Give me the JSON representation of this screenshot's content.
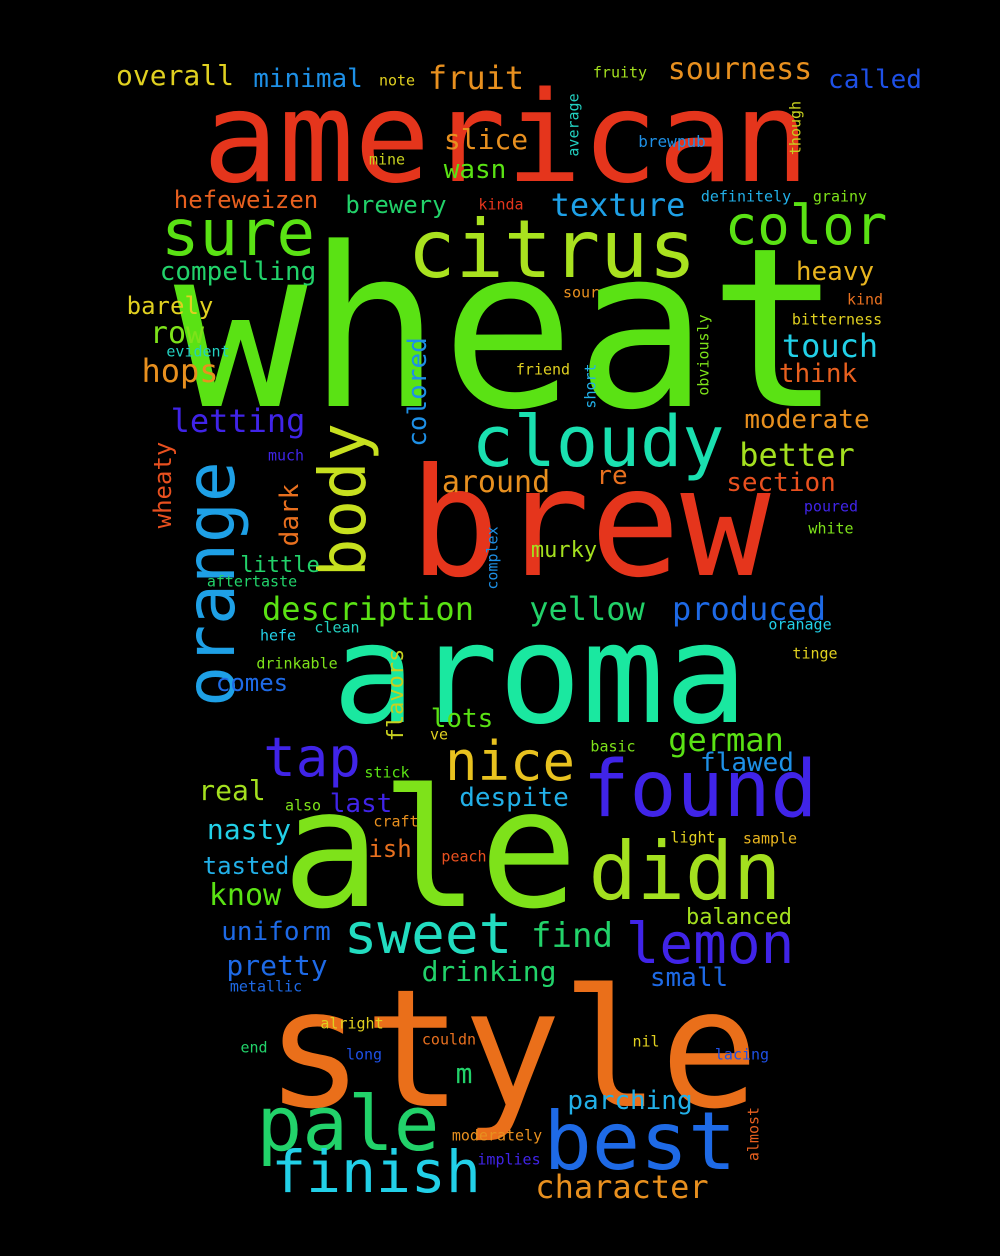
{
  "words": [
    {
      "text": "american",
      "color": "#e5351c"
    },
    {
      "text": "wheat",
      "color": "#5ae214"
    },
    {
      "text": "brew",
      "color": "#e5351c"
    },
    {
      "text": "aroma",
      "color": "#1ae8a0"
    },
    {
      "text": "ale",
      "color": "#7ee21a"
    },
    {
      "text": "style",
      "color": "#ea6f1a"
    },
    {
      "text": "citrus",
      "color": "#a9e21f"
    },
    {
      "text": "orange",
      "color": "#1ea0e6"
    },
    {
      "text": "cloudy",
      "color": "#1ae0b0"
    },
    {
      "text": "sure",
      "color": "#5ae214"
    },
    {
      "text": "body",
      "color": "#c7e01f"
    },
    {
      "text": "found",
      "color": "#4024e8"
    },
    {
      "text": "didn",
      "color": "#a4e01f"
    },
    {
      "text": "best",
      "color": "#1e6ae6"
    },
    {
      "text": "pale",
      "color": "#22d26a"
    },
    {
      "text": "sweet",
      "color": "#22dcc0"
    },
    {
      "text": "lemon",
      "color": "#4024e8"
    },
    {
      "text": "finish",
      "color": "#22d0e8"
    },
    {
      "text": "nice",
      "color": "#e8c21f"
    },
    {
      "text": "tap",
      "color": "#4024e8"
    },
    {
      "text": "color",
      "color": "#5ae214"
    },
    {
      "text": "fruit",
      "color": "#e8901f"
    },
    {
      "text": "sourness",
      "color": "#e8901f"
    },
    {
      "text": "overall",
      "color": "#e0d020"
    },
    {
      "text": "minimal",
      "color": "#1e90e6"
    },
    {
      "text": "called",
      "color": "#1e50e6"
    },
    {
      "text": "note",
      "color": "#e0d020"
    },
    {
      "text": "fruity",
      "color": "#a4e01f"
    },
    {
      "text": "average",
      "color": "#22d0c0"
    },
    {
      "text": "though",
      "color": "#c7d01f"
    },
    {
      "text": "slice",
      "color": "#e8901f"
    },
    {
      "text": "brewpub",
      "color": "#1e90e6"
    },
    {
      "text": "mine",
      "color": "#c7d01f"
    },
    {
      "text": "wasn",
      "color": "#5ae214"
    },
    {
      "text": "hefeweizen",
      "color": "#e8601f"
    },
    {
      "text": "brewery",
      "color": "#22d26a"
    },
    {
      "text": "texture",
      "color": "#1ea0e6"
    },
    {
      "text": "kinda",
      "color": "#e5351c"
    },
    {
      "text": "definitely",
      "color": "#22b0e8"
    },
    {
      "text": "grainy",
      "color": "#7ee21a"
    },
    {
      "text": "compelling",
      "color": "#22d26a"
    },
    {
      "text": "heavy",
      "color": "#e8b41f"
    },
    {
      "text": "barely",
      "color": "#e0d020"
    },
    {
      "text": "sour",
      "color": "#e8901f"
    },
    {
      "text": "kind",
      "color": "#e8701f"
    },
    {
      "text": "bitterness",
      "color": "#e0d020"
    },
    {
      "text": "row",
      "color": "#7ee21a"
    },
    {
      "text": "touch",
      "color": "#22d0e8"
    },
    {
      "text": "evident",
      "color": "#22d0c0"
    },
    {
      "text": "hops",
      "color": "#e8901f"
    },
    {
      "text": "colored",
      "color": "#1e90e6"
    },
    {
      "text": "obviously",
      "color": "#7ee21a"
    },
    {
      "text": "friend",
      "color": "#e0d020"
    },
    {
      "text": "short",
      "color": "#22b0e8"
    },
    {
      "text": "think",
      "color": "#e8601f"
    },
    {
      "text": "letting",
      "color": "#4024e8"
    },
    {
      "text": "moderate",
      "color": "#e8901f"
    },
    {
      "text": "better",
      "color": "#a4e01f"
    },
    {
      "text": "wheaty",
      "color": "#e8501f"
    },
    {
      "text": "much",
      "color": "#4024e8"
    },
    {
      "text": "re",
      "color": "#e8701f"
    },
    {
      "text": "around",
      "color": "#e8901f"
    },
    {
      "text": "section",
      "color": "#e8501f"
    },
    {
      "text": "dark",
      "color": "#e8701f"
    },
    {
      "text": "poured",
      "color": "#4024e8"
    },
    {
      "text": "white",
      "color": "#7ee21a"
    },
    {
      "text": "complex",
      "color": "#1e90e6"
    },
    {
      "text": "murky",
      "color": "#a4e01f"
    },
    {
      "text": "little",
      "color": "#22d26a"
    },
    {
      "text": "aftertaste",
      "color": "#22d26a"
    },
    {
      "text": "description",
      "color": "#5ae214"
    },
    {
      "text": "yellow",
      "color": "#22d26a"
    },
    {
      "text": "produced",
      "color": "#1e6ae6"
    },
    {
      "text": "hefe",
      "color": "#22d0e8"
    },
    {
      "text": "clean",
      "color": "#22d0c0"
    },
    {
      "text": "oranage",
      "color": "#22d0e8"
    },
    {
      "text": "drinkable",
      "color": "#7ee21a"
    },
    {
      "text": "tinge",
      "color": "#e0d020"
    },
    {
      "text": "comes",
      "color": "#1e6ae6"
    },
    {
      "text": "flavors",
      "color": "#c7d01f"
    },
    {
      "text": "lots",
      "color": "#5ae214"
    },
    {
      "text": "ve",
      "color": "#e0d020"
    },
    {
      "text": "german",
      "color": "#5ae214"
    },
    {
      "text": "basic",
      "color": "#7ee21a"
    },
    {
      "text": "flawed",
      "color": "#1e90e6"
    },
    {
      "text": "real",
      "color": "#a4e01f"
    },
    {
      "text": "stick",
      "color": "#5ae214"
    },
    {
      "text": "last",
      "color": "#4024e8"
    },
    {
      "text": "also",
      "color": "#7ee21a"
    },
    {
      "text": "despite",
      "color": "#22b0e8"
    },
    {
      "text": "nasty",
      "color": "#22d0e8"
    },
    {
      "text": "craft",
      "color": "#e8901f"
    },
    {
      "text": "light",
      "color": "#e0d020"
    },
    {
      "text": "sample",
      "color": "#e8b41f"
    },
    {
      "text": "ish",
      "color": "#e8701f"
    },
    {
      "text": "peach",
      "color": "#e8501f"
    },
    {
      "text": "tasted",
      "color": "#22b0e8"
    },
    {
      "text": "know",
      "color": "#5ae214"
    },
    {
      "text": "find",
      "color": "#22d26a"
    },
    {
      "text": "balanced",
      "color": "#a4e01f"
    },
    {
      "text": "uniform",
      "color": "#1e6ae6"
    },
    {
      "text": "drinking",
      "color": "#22d26a"
    },
    {
      "text": "pretty",
      "color": "#1e6ae6"
    },
    {
      "text": "small",
      "color": "#1e6ae6"
    },
    {
      "text": "metallic",
      "color": "#1e6ae6"
    },
    {
      "text": "alright",
      "color": "#e0d020"
    },
    {
      "text": "end",
      "color": "#22d26a"
    },
    {
      "text": "long",
      "color": "#1e50e6"
    },
    {
      "text": "couldn",
      "color": "#e8701f"
    },
    {
      "text": "nil",
      "color": "#e0d020"
    },
    {
      "text": "lacing",
      "color": "#1e50e6"
    },
    {
      "text": "m",
      "color": "#22d26a"
    },
    {
      "text": "parching",
      "color": "#22b0e8"
    },
    {
      "text": "almost",
      "color": "#e8601f"
    },
    {
      "text": "moderately",
      "color": "#e8901f"
    },
    {
      "text": "implies",
      "color": "#4024e8"
    },
    {
      "text": "character",
      "color": "#e8901f"
    }
  ]
}
